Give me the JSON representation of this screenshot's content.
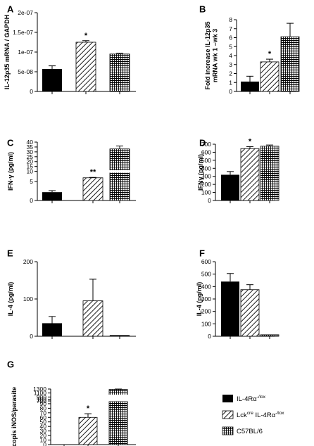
{
  "chart_data": [
    {
      "type": "bar",
      "panel": "A",
      "ylabel": "IL-12p35 mRNA / GAPDH",
      "categories": [
        "IL-4Rα-/lox",
        "Lckcre IL-4Rα-/lox",
        "C57BL/6"
      ],
      "values": [
        5.7e-08,
        1.25e-07,
        9.5e-08
      ],
      "errors": [
        8e-09,
        4e-09,
        2e-09
      ],
      "sig": [
        "",
        "*",
        ""
      ],
      "ylim": [
        0,
        2e-07
      ],
      "ticks": [
        {
          "v": 0,
          "t": "0"
        },
        {
          "v": 5e-08,
          "t": "5e-08"
        },
        {
          "v": 1e-07,
          "t": "1e-07"
        },
        {
          "v": 1.5e-07,
          "t": "1.5e-07"
        },
        {
          "v": 2e-07,
          "t": "2e-07"
        }
      ]
    },
    {
      "type": "bar",
      "panel": "B",
      "ylabel": "Fold increase IL-12p35 mRNA wk 1 –wk 3",
      "categories": [
        "IL-4Rα-/lox",
        "Lckcre IL-4Rα-/lox",
        "C57BL/6"
      ],
      "values": [
        1.1,
        3.3,
        6.1
      ],
      "errors": [
        0.6,
        0.3,
        1.5
      ],
      "sig": [
        "",
        "*",
        ""
      ],
      "ylim": [
        0,
        8
      ],
      "ticks": [
        {
          "v": 0,
          "t": "0"
        },
        {
          "v": 1,
          "t": "1"
        },
        {
          "v": 2,
          "t": "2"
        },
        {
          "v": 3,
          "t": "3"
        },
        {
          "v": 4,
          "t": "4"
        },
        {
          "v": 5,
          "t": "5"
        },
        {
          "v": 6,
          "t": "6"
        },
        {
          "v": 7,
          "t": "7"
        },
        {
          "v": 8,
          "t": "8"
        }
      ]
    },
    {
      "type": "bar",
      "panel": "C",
      "ylabel": "IFN-γ (pg/ml)",
      "axis_break": [
        8,
        9
      ],
      "categories": [
        "IL-4Rα-/lox",
        "Lckcre IL-4Rα-/lox",
        "C57BL/6"
      ],
      "values": [
        2.2,
        6.0,
        33.0
      ],
      "errors": [
        0.4,
        0.1,
        3.0
      ],
      "sig": [
        "",
        "**",
        ""
      ],
      "ylim": [
        0,
        40
      ],
      "ticks": [
        {
          "v": 0,
          "t": "0"
        },
        {
          "v": 5,
          "t": "5"
        },
        {
          "v": 10,
          "t": "10"
        },
        {
          "v": 15,
          "t": "15"
        },
        {
          "v": 20,
          "t": "20"
        },
        {
          "v": 25,
          "t": "25"
        },
        {
          "v": 30,
          "t": "30"
        },
        {
          "v": 35,
          "t": "35"
        },
        {
          "v": 40,
          "t": "40"
        }
      ]
    },
    {
      "type": "bar",
      "panel": "D",
      "ylabel": "IFNγ (pg/ml)",
      "categories": [
        "IL-4Rα-/lox",
        "Lckcre IL-4Rα-/lox",
        "C57BL/6"
      ],
      "values": [
        320,
        645,
        675
      ],
      "errors": [
        40,
        25,
        15
      ],
      "sig": [
        "",
        "*",
        ""
      ],
      "ylim": [
        0,
        700
      ],
      "ticks": [
        {
          "v": 0,
          "t": "0"
        },
        {
          "v": 100,
          "t": "100"
        },
        {
          "v": 200,
          "t": "200"
        },
        {
          "v": 300,
          "t": "300"
        },
        {
          "v": 400,
          "t": "400"
        },
        {
          "v": 500,
          "t": "500"
        },
        {
          "v": 600,
          "t": "600"
        },
        {
          "v": 700,
          "t": "700"
        }
      ]
    },
    {
      "type": "bar",
      "panel": "E",
      "ylabel": "IL-4 (pg/ml)",
      "categories": [
        "IL-4Rα-/lox",
        "Lckcre IL-4Rα-/lox",
        "C57BL/6"
      ],
      "values": [
        35,
        95,
        1
      ],
      "errors": [
        18,
        58,
        0
      ],
      "sig": [
        "",
        "",
        ""
      ],
      "ylim": [
        0,
        200
      ],
      "ticks": [
        {
          "v": 0,
          "t": "0"
        },
        {
          "v": 100,
          "t": "100"
        },
        {
          "v": 200,
          "t": "200"
        }
      ]
    },
    {
      "type": "bar",
      "panel": "F",
      "ylabel": "IL-4 (pg/ml)",
      "categories": [
        "IL-4Rα-/lox",
        "Lckcre IL-4Rα-/lox",
        "C57BL/6"
      ],
      "values": [
        440,
        375,
        12
      ],
      "errors": [
        65,
        40,
        0
      ],
      "sig": [
        "",
        "",
        ""
      ],
      "ylim": [
        0,
        600
      ],
      "ticks": [
        {
          "v": 0,
          "t": "0"
        },
        {
          "v": 100,
          "t": "100"
        },
        {
          "v": 200,
          "t": "200"
        },
        {
          "v": 300,
          "t": "300"
        },
        {
          "v": 400,
          "t": "400"
        },
        {
          "v": 500,
          "t": "500"
        },
        {
          "v": 600,
          "t": "600"
        }
      ]
    },
    {
      "type": "bar",
      "panel": "G",
      "ylabel": "copis iNOS/parasite",
      "axis_break": [
        110,
        700
      ],
      "categories": [
        "IL-4Rα-/lox",
        "Lckcre IL-4Rα-/lox",
        "C57BL/6"
      ],
      "values": [
        0,
        60,
        1280
      ],
      "errors": [
        0,
        8,
        20
      ],
      "sig": [
        "",
        "*",
        ""
      ],
      "ylim": [
        0,
        1300
      ],
      "ticks": [
        {
          "v": 0,
          "t": "0"
        },
        {
          "v": 10,
          "t": "10"
        },
        {
          "v": 20,
          "t": "20"
        },
        {
          "v": 30,
          "t": "30"
        },
        {
          "v": 40,
          "t": "40"
        },
        {
          "v": 50,
          "t": "50"
        },
        {
          "v": 60,
          "t": "60"
        },
        {
          "v": 70,
          "t": "70"
        },
        {
          "v": 80,
          "t": "80"
        },
        {
          "v": 90,
          "t": "90"
        },
        {
          "v": 100,
          "t": "100"
        },
        {
          "v": 700,
          "t": "700"
        },
        {
          "v": 900,
          "t": "900"
        },
        {
          "v": 1100,
          "t": "1100"
        },
        {
          "v": 1300,
          "t": "1300"
        }
      ]
    }
  ],
  "legend": {
    "items": [
      {
        "name": "IL-4Rα",
        "sup": "-/lox",
        "pattern": "solid"
      },
      {
        "prefix": "Lck",
        "prefix_sup": "cre",
        "name": " IL-4Rα",
        "sup": "-/lox",
        "pattern": "diagonal"
      },
      {
        "name": "C57BL/6",
        "sup": "",
        "pattern": "grid"
      }
    ]
  }
}
